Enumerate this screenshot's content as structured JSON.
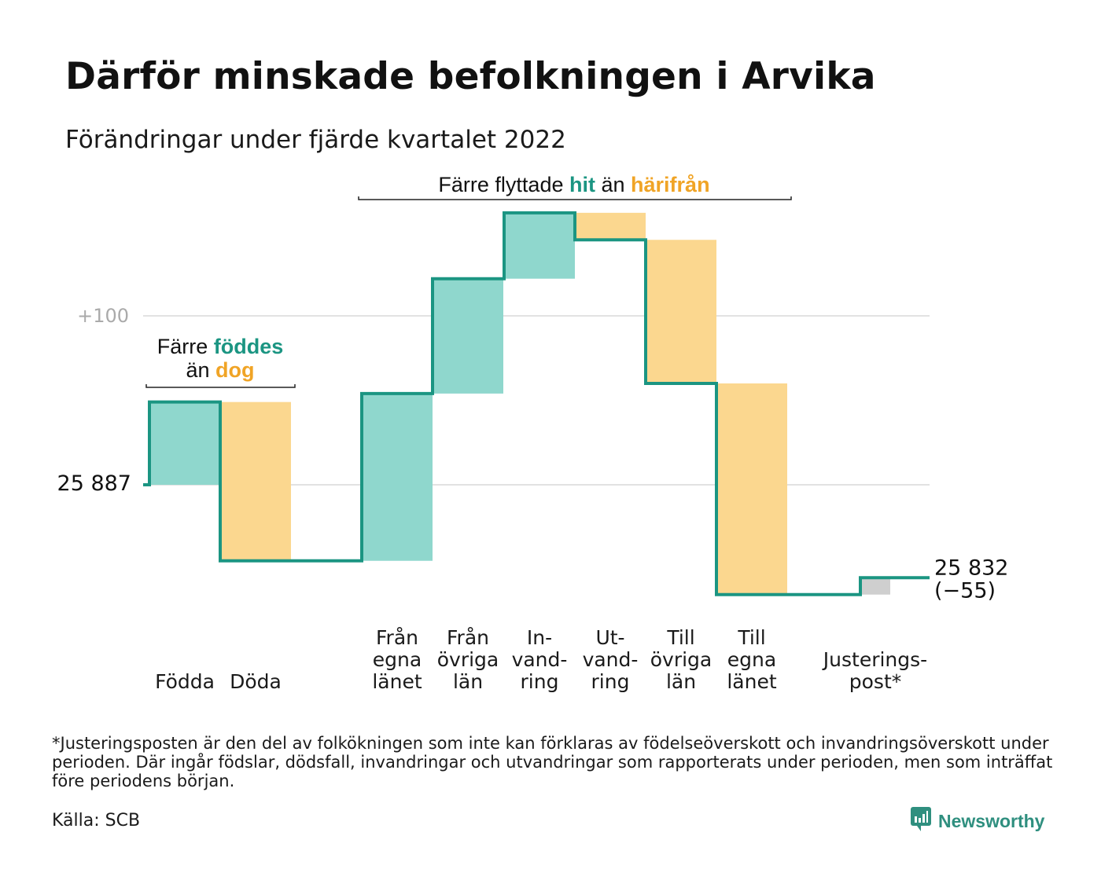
{
  "title": "Därför minskade befolkningen i Arvika",
  "subtitle": "Förändringar under fjärde kvartalet 2022",
  "colors": {
    "increase": "#8fd7cd",
    "decrease": "#fbd78f",
    "adjustment": "#cfcfcf",
    "line": "#1b9582",
    "increase_text": "#1b9582",
    "decrease_text": "#f0a426",
    "grid": "#e2e2e2"
  },
  "chart_data": {
    "type": "waterfall",
    "start_value": 25887,
    "start_label": "25 887",
    "end_label": "25 832",
    "end_change_label": "(−55)",
    "gridline_label": "+100",
    "gridline_value": 100,
    "y_range_relative": [
      -70,
      160
    ],
    "steps": [
      {
        "label_lines": [
          "Födda"
        ],
        "change": 49,
        "kind": "increase"
      },
      {
        "label_lines": [
          "Döda"
        ],
        "change": -94,
        "kind": "decrease"
      },
      {
        "label_lines": [
          "Från",
          "egna",
          "länet"
        ],
        "change": 99,
        "kind": "increase"
      },
      {
        "label_lines": [
          "Från",
          "övriga",
          "län"
        ],
        "change": 68,
        "kind": "increase"
      },
      {
        "label_lines": [
          "In-",
          "vand-",
          "ring"
        ],
        "change": 39,
        "kind": "increase"
      },
      {
        "label_lines": [
          "Ut-",
          "vand-",
          "ring"
        ],
        "change": -16,
        "kind": "decrease"
      },
      {
        "label_lines": [
          "Till",
          "övriga",
          "län"
        ],
        "change": -85,
        "kind": "decrease"
      },
      {
        "label_lines": [
          "Till",
          "egna",
          "länet"
        ],
        "change": -125,
        "kind": "decrease"
      },
      {
        "label_lines": [
          "Justerings-",
          "post*"
        ],
        "change": 10,
        "kind": "adjustment"
      }
    ],
    "annotations": [
      {
        "id": "births",
        "parts": [
          {
            "line": 0,
            "text": "Färre ",
            "style": "plain"
          },
          {
            "line": 0,
            "text": "föddes",
            "style": "increase"
          },
          {
            "line": 1,
            "text": "än ",
            "style": "plain"
          },
          {
            "line": 1,
            "text": "dog",
            "style": "decrease"
          }
        ]
      },
      {
        "id": "moves",
        "parts": [
          {
            "line": 0,
            "text": "Färre flyttade ",
            "style": "plain"
          },
          {
            "line": 0,
            "text": "hit",
            "style": "increase"
          },
          {
            "line": 0,
            "text": " än ",
            "style": "plain"
          },
          {
            "line": 0,
            "text": "härifrån",
            "style": "decrease"
          }
        ]
      }
    ]
  },
  "footnote": "*Justeringsposten är den del av folkökningen som inte kan förklaras av födelseöverskott och invandringsöverskott under perioden. Där ingår födslar, dödsfall, invandringar och utvandringar som rapporterats under perioden, men som inträffat före periodens början.",
  "source": "Källa: SCB",
  "brand": {
    "name": "Newsworthy",
    "icon": "newsworthy-logo-icon"
  }
}
